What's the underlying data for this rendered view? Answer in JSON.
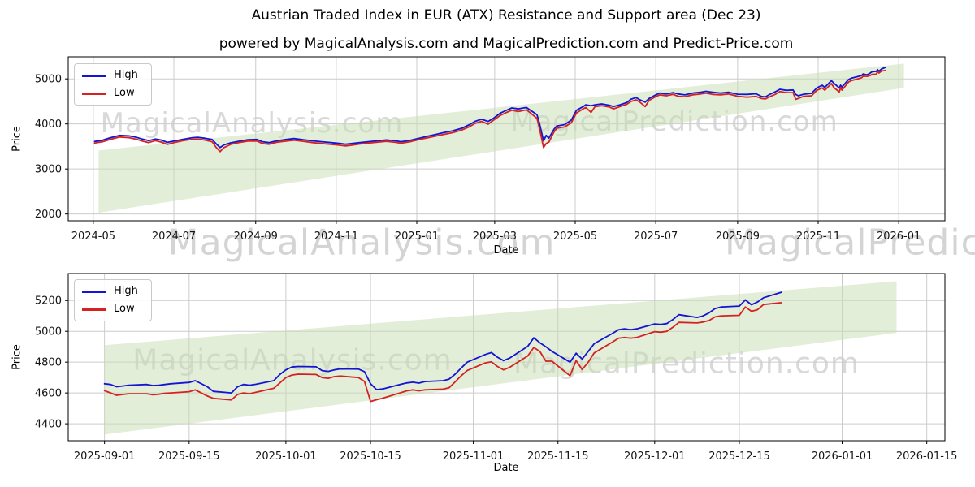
{
  "title": "Austrian Traded Index in EUR (ATX) Resistance and Support area (Dec 23)",
  "subtitle": "powered by MagicalAnalysis.com and MagicalPrediction.com and Predict-Price.com",
  "watermarks": {
    "analysis": "MagicalAnalysis.com",
    "prediction": "MagicalPrediction.com"
  },
  "legend": {
    "high_label": "High",
    "low_label": "Low"
  },
  "colors": {
    "high": "#1414d2",
    "low": "#d42222",
    "band": "#c7deb4",
    "grid": "#cccccc",
    "axis": "#000000",
    "tick_text": "#141414"
  },
  "chart_data": [
    {
      "type": "line",
      "title": "",
      "xlabel": "Date",
      "ylabel": "Price",
      "grid": true,
      "legend_position": "upper left",
      "x_domain": [
        "2024-04-12",
        "2026-02-05"
      ],
      "y_domain": [
        1850,
        5490
      ],
      "y_ticks": [
        2000,
        3000,
        4000,
        5000
      ],
      "x_ticks": [
        {
          "label": "2024-05",
          "date": "2024-05-01"
        },
        {
          "label": "2024-07",
          "date": "2024-07-01"
        },
        {
          "label": "2024-09",
          "date": "2024-09-01"
        },
        {
          "label": "2024-11",
          "date": "2024-11-01"
        },
        {
          "label": "2025-01",
          "date": "2025-01-01"
        },
        {
          "label": "2025-03",
          "date": "2025-03-01"
        },
        {
          "label": "2025-05",
          "date": "2025-05-01"
        },
        {
          "label": "2025-07",
          "date": "2025-07-01"
        },
        {
          "label": "2025-09",
          "date": "2025-09-01"
        },
        {
          "label": "2025-11",
          "date": "2025-11-01"
        },
        {
          "label": "2026-01",
          "date": "2026-01-01"
        }
      ],
      "band": {
        "x": [
          "2024-05-05",
          "2026-01-05"
        ],
        "top": [
          3410,
          5340
        ],
        "bottom": [
          2030,
          4800
        ]
      },
      "dates": [
        "2024-05-02",
        "2024-05-08",
        "2024-05-14",
        "2024-05-21",
        "2024-05-28",
        "2024-06-03",
        "2024-06-07",
        "2024-06-12",
        "2024-06-17",
        "2024-06-21",
        "2024-06-26",
        "2024-07-02",
        "2024-07-08",
        "2024-07-15",
        "2024-07-19",
        "2024-07-24",
        "2024-07-30",
        "2024-08-02",
        "2024-08-05",
        "2024-08-08",
        "2024-08-13",
        "2024-08-19",
        "2024-08-26",
        "2024-09-02",
        "2024-09-06",
        "2024-09-11",
        "2024-09-17",
        "2024-09-24",
        "2024-09-30",
        "2024-10-07",
        "2024-10-14",
        "2024-10-21",
        "2024-10-28",
        "2024-11-04",
        "2024-11-08",
        "2024-11-13",
        "2024-11-19",
        "2024-11-25",
        "2024-12-02",
        "2024-12-09",
        "2024-12-16",
        "2024-12-20",
        "2024-12-27",
        "2025-01-03",
        "2025-01-09",
        "2025-01-15",
        "2025-01-21",
        "2025-01-28",
        "2025-02-04",
        "2025-02-10",
        "2025-02-14",
        "2025-02-19",
        "2025-02-24",
        "2025-02-28",
        "2025-03-05",
        "2025-03-10",
        "2025-03-14",
        "2025-03-19",
        "2025-03-25",
        "2025-03-28",
        "2025-04-02",
        "2025-04-04",
        "2025-04-07",
        "2025-04-09",
        "2025-04-11",
        "2025-04-15",
        "2025-04-17",
        "2025-04-23",
        "2025-04-28",
        "2025-05-02",
        "2025-05-07",
        "2025-05-09",
        "2025-05-13",
        "2025-05-16",
        "2025-05-21",
        "2025-05-27",
        "2025-05-30",
        "2025-06-04",
        "2025-06-09",
        "2025-06-12",
        "2025-06-16",
        "2025-06-19",
        "2025-06-23",
        "2025-06-26",
        "2025-07-01",
        "2025-07-04",
        "2025-07-09",
        "2025-07-14",
        "2025-07-18",
        "2025-07-23",
        "2025-07-29",
        "2025-08-04",
        "2025-08-08",
        "2025-08-13",
        "2025-08-19",
        "2025-08-25",
        "2025-09-01",
        "2025-09-08",
        "2025-09-15",
        "2025-09-19",
        "2025-09-22",
        "2025-09-25",
        "2025-09-30",
        "2025-10-03",
        "2025-10-08",
        "2025-10-13",
        "2025-10-15",
        "2025-10-17",
        "2025-10-21",
        "2025-10-27",
        "2025-10-31",
        "2025-11-04",
        "2025-11-06",
        "2025-11-11",
        "2025-11-13",
        "2025-11-17",
        "2025-11-18",
        "2025-11-19",
        "2025-11-24",
        "2025-11-26",
        "2025-12-01",
        "2025-12-04",
        "2025-12-05",
        "2025-12-08",
        "2025-12-10",
        "2025-12-12",
        "2025-12-15",
        "2025-12-16",
        "2025-12-17",
        "2025-12-19",
        "2025-12-22"
      ],
      "series": [
        {
          "name": "High",
          "color_key": "high",
          "values": [
            3610,
            3640,
            3695,
            3745,
            3735,
            3700,
            3665,
            3630,
            3665,
            3645,
            3590,
            3625,
            3660,
            3695,
            3705,
            3685,
            3655,
            3560,
            3475,
            3535,
            3580,
            3615,
            3650,
            3655,
            3605,
            3585,
            3625,
            3655,
            3675,
            3650,
            3625,
            3605,
            3585,
            3565,
            3550,
            3565,
            3585,
            3605,
            3625,
            3645,
            3625,
            3605,
            3635,
            3685,
            3725,
            3765,
            3805,
            3845,
            3905,
            3985,
            4055,
            4105,
            4055,
            4125,
            4235,
            4305,
            4355,
            4335,
            4365,
            4305,
            4205,
            4005,
            3625,
            3745,
            3685,
            3885,
            3955,
            3985,
            4085,
            4305,
            4385,
            4425,
            4405,
            4425,
            4445,
            4415,
            4385,
            4425,
            4475,
            4545,
            4585,
            4535,
            4485,
            4565,
            4645,
            4685,
            4665,
            4695,
            4665,
            4645,
            4685,
            4705,
            4725,
            4705,
            4685,
            4705,
            4660,
            4655,
            4670,
            4610,
            4600,
            4650,
            4720,
            4770,
            4745,
            4755,
            4655,
            4625,
            4660,
            4680,
            4800,
            4860,
            4810,
            4960,
            4900,
            4800,
            4860,
            4820,
            4985,
            5015,
            5050,
            5075,
            5110,
            5090,
            5120,
            5160,
            5165,
            5205,
            5170,
            5220,
            5255
          ]
        },
        {
          "name": "Low",
          "color_key": "low",
          "values": [
            3575,
            3605,
            3660,
            3710,
            3695,
            3660,
            3620,
            3585,
            3630,
            3600,
            3545,
            3590,
            3630,
            3660,
            3665,
            3645,
            3605,
            3480,
            3385,
            3475,
            3545,
            3585,
            3620,
            3620,
            3565,
            3550,
            3595,
            3620,
            3640,
            3615,
            3585,
            3565,
            3545,
            3525,
            3510,
            3530,
            3555,
            3575,
            3595,
            3615,
            3590,
            3570,
            3605,
            3655,
            3690,
            3730,
            3765,
            3805,
            3865,
            3940,
            4010,
            4055,
            3995,
            4080,
            4185,
            4255,
            4305,
            4275,
            4315,
            4245,
            4125,
            3895,
            3475,
            3565,
            3595,
            3825,
            3905,
            3935,
            4025,
            4245,
            4335,
            4365,
            4255,
            4385,
            4405,
            4375,
            4335,
            4385,
            4435,
            4495,
            4535,
            4485,
            4385,
            4525,
            4605,
            4645,
            4625,
            4655,
            4615,
            4605,
            4645,
            4665,
            4685,
            4655,
            4645,
            4665,
            4615,
            4595,
            4610,
            4565,
            4555,
            4600,
            4665,
            4720,
            4695,
            4695,
            4545,
            4565,
            4612,
            4625,
            4745,
            4800,
            4750,
            4895,
            4805,
            4710,
            4810,
            4750,
            4930,
            4960,
            5000,
            5025,
            5060,
            5055,
            5070,
            5100,
            5105,
            5160,
            5130,
            5175,
            5185
          ]
        }
      ]
    },
    {
      "type": "line",
      "title": "",
      "xlabel": "Date",
      "ylabel": "Price",
      "grid": true,
      "legend_position": "upper left",
      "x_domain": [
        "2025-08-26",
        "2026-01-18"
      ],
      "y_domain": [
        4290,
        5375
      ],
      "y_ticks": [
        4400,
        4600,
        4800,
        5000,
        5200
      ],
      "x_ticks": [
        {
          "label": "2025-09-01",
          "date": "2025-09-01"
        },
        {
          "label": "2025-09-15",
          "date": "2025-09-15"
        },
        {
          "label": "2025-10-01",
          "date": "2025-10-01"
        },
        {
          "label": "2025-10-15",
          "date": "2025-10-15"
        },
        {
          "label": "2025-11-01",
          "date": "2025-11-01"
        },
        {
          "label": "2025-11-15",
          "date": "2025-11-15"
        },
        {
          "label": "2025-12-01",
          "date": "2025-12-01"
        },
        {
          "label": "2025-12-15",
          "date": "2025-12-15"
        },
        {
          "label": "2026-01-01",
          "date": "2026-01-01"
        },
        {
          "label": "2026-01-15",
          "date": "2026-01-15"
        }
      ],
      "band": {
        "x": [
          "2025-09-01",
          "2026-01-10"
        ],
        "top": [
          4910,
          5325
        ],
        "bottom": [
          4330,
          4990
        ]
      },
      "dates": [
        "2025-09-01",
        "2025-09-02",
        "2025-09-03",
        "2025-09-04",
        "2025-09-05",
        "2025-09-08",
        "2025-09-09",
        "2025-09-10",
        "2025-09-11",
        "2025-09-12",
        "2025-09-15",
        "2025-09-16",
        "2025-09-18",
        "2025-09-19",
        "2025-09-22",
        "2025-09-23",
        "2025-09-24",
        "2025-09-25",
        "2025-09-26",
        "2025-09-29",
        "2025-09-30",
        "2025-10-01",
        "2025-10-02",
        "2025-10-03",
        "2025-10-06",
        "2025-10-07",
        "2025-10-08",
        "2025-10-09",
        "2025-10-10",
        "2025-10-13",
        "2025-10-14",
        "2025-10-15",
        "2025-10-16",
        "2025-10-17",
        "2025-10-20",
        "2025-10-21",
        "2025-10-22",
        "2025-10-23",
        "2025-10-24",
        "2025-10-27",
        "2025-10-28",
        "2025-10-29",
        "2025-10-30",
        "2025-10-31",
        "2025-11-03",
        "2025-11-04",
        "2025-11-05",
        "2025-11-06",
        "2025-11-07",
        "2025-11-10",
        "2025-11-11",
        "2025-11-12",
        "2025-11-13",
        "2025-11-14",
        "2025-11-17",
        "2025-11-18",
        "2025-11-19",
        "2025-11-20",
        "2025-11-21",
        "2025-11-24",
        "2025-11-25",
        "2025-11-26",
        "2025-11-27",
        "2025-11-28",
        "2025-12-01",
        "2025-12-02",
        "2025-12-03",
        "2025-12-04",
        "2025-12-05",
        "2025-12-08",
        "2025-12-09",
        "2025-12-10",
        "2025-12-11",
        "2025-12-12",
        "2025-12-15",
        "2025-12-16",
        "2025-12-17",
        "2025-12-18",
        "2025-12-19",
        "2025-12-22"
      ],
      "series": [
        {
          "name": "High",
          "color_key": "high",
          "values": [
            4660,
            4655,
            4640,
            4645,
            4650,
            4655,
            4648,
            4650,
            4655,
            4660,
            4668,
            4680,
            4640,
            4610,
            4600,
            4640,
            4655,
            4650,
            4656,
            4680,
            4720,
            4750,
            4768,
            4772,
            4770,
            4745,
            4740,
            4750,
            4756,
            4755,
            4738,
            4660,
            4622,
            4626,
            4656,
            4665,
            4670,
            4664,
            4674,
            4680,
            4690,
            4722,
            4762,
            4800,
            4850,
            4862,
            4832,
            4810,
            4826,
            4902,
            4958,
            4926,
            4900,
            4870,
            4800,
            4858,
            4820,
            4870,
            4920,
            4986,
            5010,
            5016,
            5010,
            5016,
            5048,
            5044,
            5050,
            5076,
            5108,
            5090,
            5100,
            5120,
            5148,
            5158,
            5164,
            5204,
            5172,
            5190,
            5218,
            5254
          ]
        },
        {
          "name": "Low",
          "color_key": "low",
          "values": [
            4615,
            4600,
            4585,
            4590,
            4595,
            4595,
            4588,
            4592,
            4598,
            4600,
            4608,
            4620,
            4580,
            4565,
            4555,
            4590,
            4600,
            4595,
            4604,
            4630,
            4665,
            4700,
            4716,
            4722,
            4720,
            4700,
            4695,
            4706,
            4710,
            4700,
            4675,
            4545,
            4556,
            4566,
            4602,
            4614,
            4620,
            4614,
            4620,
            4625,
            4634,
            4672,
            4712,
            4746,
            4795,
            4802,
            4772,
            4750,
            4766,
            4840,
            4895,
            4870,
            4806,
            4806,
            4712,
            4810,
            4752,
            4800,
            4860,
            4930,
            4955,
            4960,
            4956,
            4960,
            4998,
            4994,
            5000,
            5026,
            5058,
            5054,
            5060,
            5070,
            5094,
            5100,
            5104,
            5158,
            5130,
            5140,
            5174,
            5186
          ]
        }
      ]
    }
  ]
}
